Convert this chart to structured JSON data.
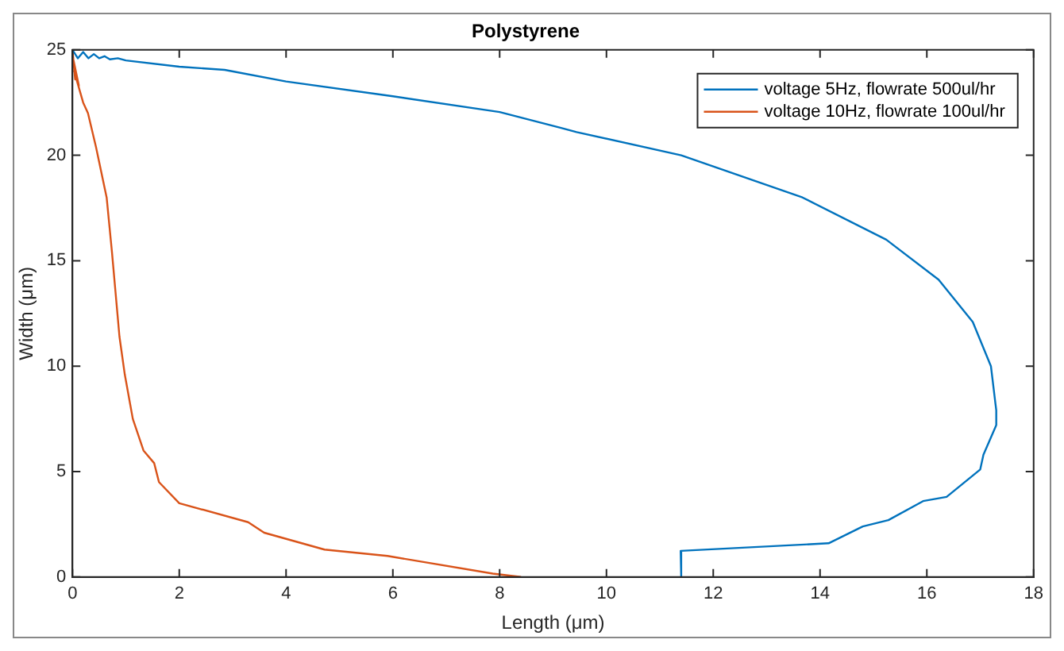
{
  "chart_data": {
    "type": "line",
    "title": "Polystyrene",
    "xlabel": "Length (μm)",
    "ylabel": "Width (μm)",
    "xlim": [
      0,
      18
    ],
    "xticks": [
      0,
      2,
      4,
      6,
      8,
      10,
      12,
      14,
      16,
      18
    ],
    "ylim": [
      0,
      25
    ],
    "yticks": [
      0,
      5,
      10,
      15,
      20,
      25
    ],
    "grid": false,
    "legend": "top right",
    "marker": "none",
    "line_style": "solid",
    "series": [
      {
        "name": "voltage 5Hz, flowrate 500ul/hr",
        "color": "#0072bd",
        "x": [
          0,
          0.1,
          0.2,
          0.3,
          0.4,
          0.5,
          0.6,
          0.7,
          0.85,
          1,
          2,
          2.85,
          4,
          6,
          8,
          9.15,
          9.44,
          11.4,
          13.67,
          15.24,
          16.22,
          16.86,
          17.2,
          17.3,
          17.3,
          17.06,
          17,
          16.37,
          15.93,
          15.28,
          14.8,
          14.16,
          11.39,
          11.4
        ],
        "values": [
          25,
          24.6,
          24.9,
          24.6,
          24.8,
          24.6,
          24.7,
          24.55,
          24.6,
          24.5,
          24.2,
          24.05,
          23.5,
          22.8,
          22.05,
          21.3,
          21.1,
          20,
          18,
          16,
          14.1,
          12.1,
          10,
          7.9,
          7.2,
          5.8,
          5.1,
          3.8,
          3.6,
          2.7,
          2.4,
          1.6,
          1.24,
          0
        ]
      },
      {
        "name": "voltage 10Hz, flowrate 100ul/hr",
        "color": "#d95319",
        "x": [
          0,
          0.05,
          0.02,
          0.12,
          0.03,
          0.2,
          0.29,
          0.44,
          0.64,
          0.74,
          0.88,
          0.98,
          1.13,
          1.33,
          1.53,
          1.62,
          2,
          3.29,
          3.59,
          4.72,
          5.9,
          7.87,
          8.4
        ],
        "values": [
          25,
          23.6,
          24.5,
          23.3,
          24,
          22.5,
          22,
          20.4,
          18,
          15.4,
          11.4,
          9.6,
          7.5,
          6,
          5.4,
          4.5,
          3.5,
          2.6,
          2.1,
          1.3,
          1,
          0.16,
          0
        ]
      }
    ]
  }
}
